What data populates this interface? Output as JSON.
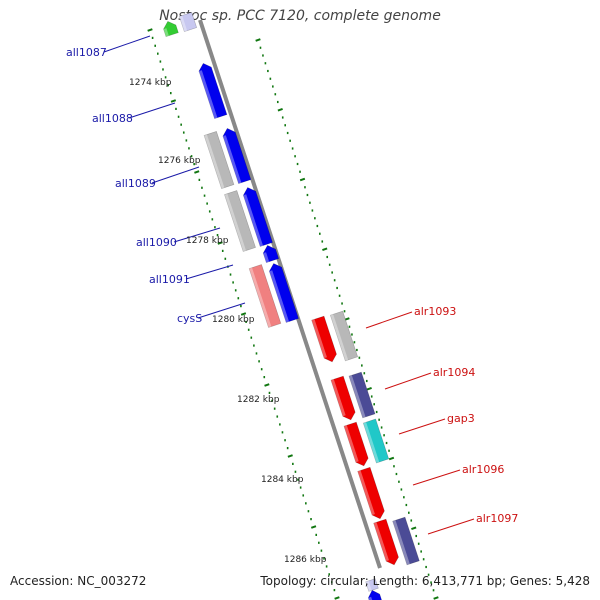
{
  "title": "Nostoc sp. PCC 7120, complete genome",
  "footer": {
    "accession": "Accession: NC_003272",
    "summary": "Topology: circular; Length: 6,413,771 bp; Genes: 5,428"
  },
  "colors": {
    "backbone": "#888888",
    "tick": "#117711",
    "left_label": "#1a1aa8",
    "right_label": "#cc1111",
    "blue_gene": "#0000ee",
    "gray_gene": "#b8b8b8",
    "pink_gene": "#f08080",
    "red_gene": "#ee0000",
    "navy_gene": "#4b4b96",
    "cyan_gene": "#20c8c8",
    "green_gene": "#33cc33",
    "lavender_gene": "#c8c8f0"
  },
  "ruler_labels": [
    "1274 kbp",
    "1276 kbp",
    "1278 kbp",
    "1280 kbp",
    "1282 kbp",
    "1284 kbp",
    "1286 kbp"
  ],
  "left_genes": [
    "all1087",
    "all1088",
    "all1089",
    "all1090",
    "all1091",
    "cysS"
  ],
  "right_genes": [
    "alr1093",
    "alr1094",
    "gap3",
    "alr1096",
    "alr1097"
  ]
}
